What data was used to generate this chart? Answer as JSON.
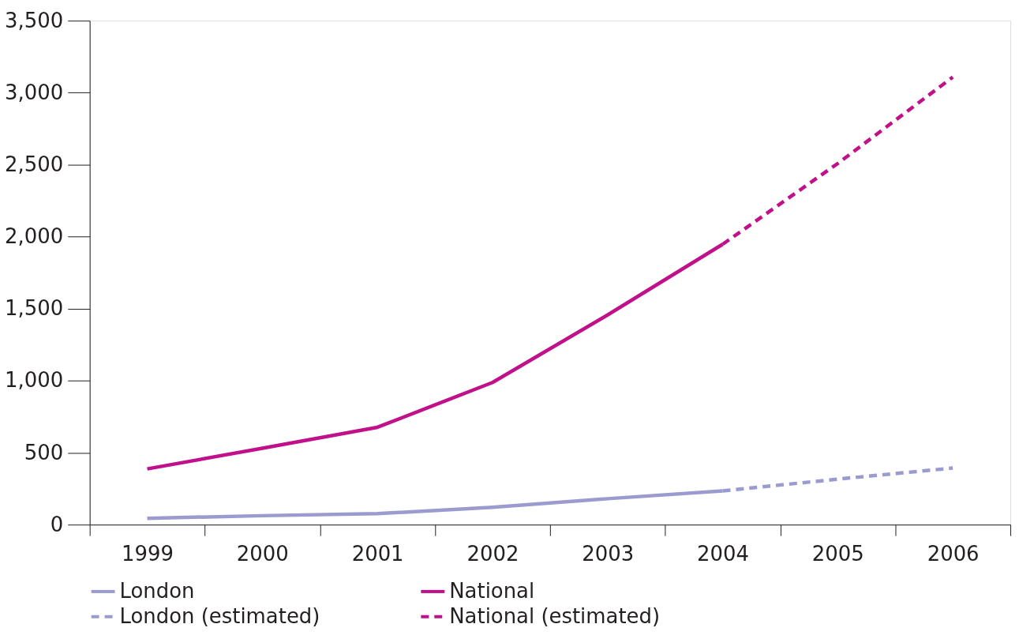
{
  "chart_data": {
    "type": "line",
    "categories": [
      "1999",
      "2000",
      "2001",
      "2002",
      "2003",
      "2004",
      "2005",
      "2006"
    ],
    "series": [
      {
        "name": "London",
        "color": "#9b9bd0",
        "line_style": "solid",
        "values": [
          44,
          62,
          76,
          120,
          180,
          234,
          null,
          null
        ]
      },
      {
        "name": "London (estimated)",
        "color": "#9b9bd0",
        "line_style": "dashed",
        "values": [
          null,
          null,
          null,
          null,
          null,
          234,
          316,
          393
        ]
      },
      {
        "name": "National",
        "color": "#c0118a",
        "line_style": "solid",
        "values": [
          387,
          530,
          676,
          987,
          1456,
          1947,
          null,
          null
        ]
      },
      {
        "name": "National (estimated)",
        "color": "#c0118a",
        "line_style": "dashed",
        "values": [
          null,
          null,
          null,
          null,
          null,
          1947,
          2508,
          3108
        ]
      }
    ],
    "ylim": [
      0,
      3500
    ],
    "yticks": [
      0,
      500,
      {
        "value": 1000,
        "label": "1,000"
      },
      {
        "value": 1500,
        "label": "1,500"
      },
      {
        "value": 2000,
        "label": "2,000"
      },
      {
        "value": 2500,
        "label": "2,500"
      },
      {
        "value": 3000,
        "label": "3,000"
      },
      {
        "value": 3500,
        "label": "3,500"
      }
    ],
    "grid": false,
    "legend": "bottom",
    "marker": "none"
  }
}
